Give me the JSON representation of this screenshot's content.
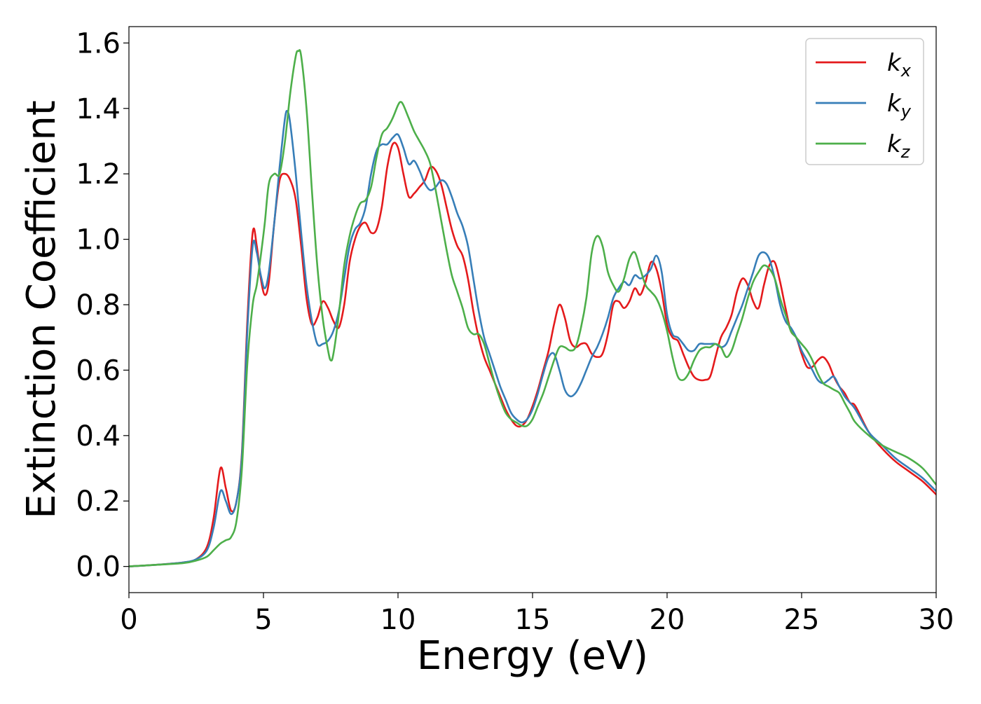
{
  "chart_data": {
    "type": "line",
    "title": "",
    "xlabel": "Energy (eV)",
    "ylabel": "Extinction Coefficient",
    "xlim": [
      0,
      30
    ],
    "ylim": [
      -0.08,
      1.65
    ],
    "xticks": [
      0,
      5,
      10,
      15,
      20,
      25,
      30
    ],
    "xtick_labels": [
      "0",
      "5",
      "10",
      "15",
      "20",
      "25",
      "30"
    ],
    "yticks": [
      0.0,
      0.2,
      0.4,
      0.6,
      0.8,
      1.0,
      1.2,
      1.4,
      1.6
    ],
    "ytick_labels": [
      "0.0",
      "0.2",
      "0.4",
      "0.6",
      "0.8",
      "1.0",
      "1.2",
      "1.4",
      "1.6"
    ],
    "grid": false,
    "legend_position": "top-right",
    "series": [
      {
        "name": "k",
        "subscript": "x",
        "color": "#e41a1c",
        "x": [
          0,
          1,
          2,
          2.5,
          2.9,
          3.15,
          3.4,
          3.6,
          3.8,
          4.0,
          4.2,
          4.4,
          4.6,
          4.75,
          4.9,
          5.05,
          5.2,
          5.4,
          5.6,
          5.8,
          6.0,
          6.2,
          6.4,
          6.6,
          6.8,
          7.0,
          7.2,
          7.4,
          7.6,
          7.8,
          8.0,
          8.2,
          8.4,
          8.6,
          8.8,
          9.0,
          9.2,
          9.4,
          9.6,
          9.8,
          10.0,
          10.2,
          10.4,
          10.6,
          10.8,
          11.0,
          11.2,
          11.4,
          11.6,
          11.8,
          12.0,
          12.2,
          12.4,
          12.6,
          12.8,
          13.0,
          13.2,
          13.4,
          13.6,
          13.8,
          14.0,
          14.2,
          14.4,
          14.6,
          14.8,
          15.0,
          15.2,
          15.4,
          15.6,
          15.8,
          16.0,
          16.2,
          16.4,
          16.6,
          16.8,
          17.0,
          17.2,
          17.4,
          17.6,
          17.8,
          18.0,
          18.2,
          18.4,
          18.6,
          18.8,
          19.0,
          19.2,
          19.4,
          19.6,
          19.8,
          20.0,
          20.2,
          20.4,
          20.6,
          20.8,
          21.0,
          21.2,
          21.4,
          21.6,
          21.8,
          22.0,
          22.2,
          22.4,
          22.6,
          22.8,
          23.0,
          23.2,
          23.4,
          23.6,
          23.8,
          24.0,
          24.2,
          24.4,
          24.6,
          24.8,
          25.0,
          25.2,
          25.4,
          25.6,
          25.8,
          26.0,
          26.2,
          26.4,
          26.6,
          26.8,
          27.0,
          27.5,
          28.0,
          28.5,
          29.0,
          29.5,
          30.0
        ],
        "y": [
          0.0,
          0.005,
          0.012,
          0.022,
          0.06,
          0.15,
          0.3,
          0.24,
          0.17,
          0.2,
          0.35,
          0.75,
          1.02,
          0.98,
          0.88,
          0.83,
          0.87,
          1.05,
          1.18,
          1.2,
          1.18,
          1.12,
          0.98,
          0.82,
          0.74,
          0.76,
          0.81,
          0.79,
          0.75,
          0.73,
          0.8,
          0.93,
          1.0,
          1.04,
          1.05,
          1.02,
          1.03,
          1.1,
          1.22,
          1.29,
          1.28,
          1.2,
          1.13,
          1.14,
          1.16,
          1.18,
          1.22,
          1.21,
          1.17,
          1.1,
          1.03,
          0.98,
          0.95,
          0.88,
          0.78,
          0.7,
          0.64,
          0.6,
          0.56,
          0.52,
          0.48,
          0.45,
          0.43,
          0.43,
          0.45,
          0.49,
          0.54,
          0.6,
          0.66,
          0.74,
          0.8,
          0.76,
          0.69,
          0.67,
          0.68,
          0.68,
          0.65,
          0.64,
          0.65,
          0.71,
          0.8,
          0.81,
          0.79,
          0.81,
          0.85,
          0.83,
          0.87,
          0.93,
          0.91,
          0.84,
          0.74,
          0.7,
          0.69,
          0.65,
          0.61,
          0.58,
          0.57,
          0.57,
          0.58,
          0.64,
          0.7,
          0.73,
          0.77,
          0.84,
          0.88,
          0.86,
          0.81,
          0.79,
          0.86,
          0.92,
          0.93,
          0.87,
          0.79,
          0.72,
          0.7,
          0.65,
          0.61,
          0.61,
          0.63,
          0.64,
          0.62,
          0.58,
          0.55,
          0.53,
          0.5,
          0.49,
          0.41,
          0.36,
          0.32,
          0.29,
          0.26,
          0.22
        ]
      },
      {
        "name": "k",
        "subscript": "y",
        "color": "#377eb8",
        "x": [
          0,
          1,
          2,
          2.5,
          2.9,
          3.15,
          3.4,
          3.6,
          3.8,
          4.0,
          4.2,
          4.4,
          4.6,
          4.75,
          4.9,
          5.05,
          5.2,
          5.4,
          5.6,
          5.8,
          5.9,
          6.0,
          6.2,
          6.4,
          6.6,
          6.8,
          7.0,
          7.2,
          7.4,
          7.6,
          7.8,
          8.0,
          8.2,
          8.4,
          8.6,
          8.8,
          9.0,
          9.2,
          9.4,
          9.6,
          9.8,
          10.0,
          10.2,
          10.4,
          10.6,
          10.8,
          11.0,
          11.2,
          11.4,
          11.6,
          11.8,
          12.0,
          12.2,
          12.4,
          12.6,
          12.8,
          13.0,
          13.2,
          13.4,
          13.6,
          13.8,
          14.0,
          14.2,
          14.4,
          14.6,
          14.8,
          15.0,
          15.2,
          15.4,
          15.6,
          15.8,
          16.0,
          16.2,
          16.4,
          16.6,
          16.8,
          17.0,
          17.2,
          17.4,
          17.6,
          17.8,
          18.0,
          18.2,
          18.4,
          18.6,
          18.8,
          19.0,
          19.2,
          19.4,
          19.6,
          19.8,
          20.0,
          20.2,
          20.4,
          20.6,
          20.8,
          21.0,
          21.2,
          21.4,
          21.6,
          21.8,
          22.0,
          22.2,
          22.4,
          22.6,
          22.8,
          23.0,
          23.2,
          23.4,
          23.6,
          23.8,
          24.0,
          24.2,
          24.4,
          24.6,
          24.8,
          25.0,
          25.2,
          25.4,
          25.6,
          25.8,
          26.0,
          26.2,
          26.4,
          26.6,
          26.8,
          27.0,
          27.5,
          28.0,
          28.5,
          29.0,
          29.5,
          30.0
        ],
        "y": [
          0.0,
          0.005,
          0.012,
          0.022,
          0.05,
          0.12,
          0.23,
          0.2,
          0.16,
          0.2,
          0.34,
          0.72,
          0.98,
          0.96,
          0.89,
          0.85,
          0.9,
          1.05,
          1.22,
          1.37,
          1.39,
          1.35,
          1.2,
          1.02,
          0.86,
          0.75,
          0.68,
          0.68,
          0.69,
          0.72,
          0.78,
          0.88,
          0.98,
          1.03,
          1.05,
          1.1,
          1.2,
          1.27,
          1.29,
          1.29,
          1.31,
          1.32,
          1.28,
          1.23,
          1.24,
          1.21,
          1.17,
          1.15,
          1.16,
          1.18,
          1.17,
          1.13,
          1.08,
          1.04,
          0.98,
          0.88,
          0.78,
          0.7,
          0.65,
          0.6,
          0.55,
          0.51,
          0.47,
          0.45,
          0.44,
          0.45,
          0.48,
          0.53,
          0.59,
          0.64,
          0.65,
          0.6,
          0.54,
          0.52,
          0.53,
          0.56,
          0.6,
          0.64,
          0.67,
          0.71,
          0.76,
          0.82,
          0.85,
          0.87,
          0.86,
          0.89,
          0.88,
          0.89,
          0.91,
          0.95,
          0.9,
          0.77,
          0.71,
          0.7,
          0.68,
          0.66,
          0.66,
          0.68,
          0.68,
          0.68,
          0.68,
          0.67,
          0.68,
          0.72,
          0.76,
          0.8,
          0.85,
          0.9,
          0.95,
          0.96,
          0.94,
          0.88,
          0.8,
          0.75,
          0.73,
          0.7,
          0.66,
          0.63,
          0.6,
          0.57,
          0.56,
          0.57,
          0.58,
          0.55,
          0.52,
          0.5,
          0.48,
          0.41,
          0.37,
          0.33,
          0.3,
          0.27,
          0.23
        ]
      },
      {
        "name": "k",
        "subscript": "z",
        "color": "#4daf4a",
        "x": [
          0,
          1,
          2,
          2.5,
          2.9,
          3.15,
          3.4,
          3.6,
          3.8,
          4.0,
          4.2,
          4.4,
          4.6,
          4.75,
          4.9,
          5.05,
          5.2,
          5.4,
          5.6,
          5.8,
          6.0,
          6.2,
          6.3,
          6.4,
          6.6,
          6.8,
          7.0,
          7.2,
          7.4,
          7.5,
          7.6,
          7.8,
          8.0,
          8.2,
          8.4,
          8.6,
          8.8,
          9.0,
          9.2,
          9.4,
          9.6,
          9.8,
          10.0,
          10.1,
          10.2,
          10.4,
          10.6,
          10.8,
          11.0,
          11.2,
          11.4,
          11.6,
          11.8,
          12.0,
          12.2,
          12.4,
          12.6,
          12.8,
          13.0,
          13.2,
          13.4,
          13.6,
          13.8,
          14.0,
          14.2,
          14.4,
          14.6,
          14.8,
          15.0,
          15.2,
          15.4,
          15.6,
          15.8,
          16.0,
          16.2,
          16.4,
          16.6,
          16.8,
          17.0,
          17.2,
          17.4,
          17.6,
          17.8,
          18.0,
          18.2,
          18.4,
          18.6,
          18.8,
          19.0,
          19.2,
          19.4,
          19.6,
          19.8,
          20.0,
          20.2,
          20.4,
          20.6,
          20.8,
          21.0,
          21.2,
          21.4,
          21.6,
          21.8,
          22.0,
          22.2,
          22.4,
          22.6,
          22.8,
          23.0,
          23.2,
          23.4,
          23.6,
          23.8,
          24.0,
          24.2,
          24.4,
          24.6,
          24.8,
          25.0,
          25.2,
          25.4,
          25.6,
          25.8,
          26.0,
          26.2,
          26.4,
          26.6,
          26.8,
          27.0,
          27.5,
          28.0,
          28.5,
          29.0,
          29.5,
          30.0
        ],
        "y": [
          0.0,
          0.005,
          0.01,
          0.018,
          0.03,
          0.05,
          0.07,
          0.08,
          0.09,
          0.14,
          0.3,
          0.62,
          0.8,
          0.86,
          0.95,
          1.05,
          1.17,
          1.2,
          1.2,
          1.3,
          1.45,
          1.56,
          1.575,
          1.56,
          1.4,
          1.15,
          0.92,
          0.76,
          0.66,
          0.63,
          0.65,
          0.77,
          0.92,
          1.01,
          1.07,
          1.11,
          1.12,
          1.16,
          1.25,
          1.32,
          1.34,
          1.37,
          1.41,
          1.42,
          1.41,
          1.37,
          1.33,
          1.3,
          1.27,
          1.23,
          1.15,
          1.06,
          0.97,
          0.89,
          0.84,
          0.79,
          0.73,
          0.71,
          0.71,
          0.68,
          0.62,
          0.56,
          0.51,
          0.47,
          0.45,
          0.44,
          0.43,
          0.43,
          0.45,
          0.49,
          0.53,
          0.58,
          0.63,
          0.67,
          0.67,
          0.66,
          0.67,
          0.73,
          0.82,
          0.96,
          1.01,
          0.98,
          0.9,
          0.86,
          0.84,
          0.88,
          0.94,
          0.96,
          0.91,
          0.86,
          0.84,
          0.82,
          0.78,
          0.72,
          0.64,
          0.58,
          0.57,
          0.59,
          0.63,
          0.66,
          0.67,
          0.67,
          0.68,
          0.67,
          0.64,
          0.66,
          0.71,
          0.76,
          0.82,
          0.87,
          0.9,
          0.92,
          0.91,
          0.88,
          0.82,
          0.77,
          0.72,
          0.7,
          0.68,
          0.66,
          0.63,
          0.59,
          0.56,
          0.55,
          0.54,
          0.53,
          0.5,
          0.47,
          0.44,
          0.4,
          0.37,
          0.35,
          0.33,
          0.3,
          0.25
        ]
      }
    ]
  },
  "colors": {
    "axis": "#000000",
    "background": "#ffffff",
    "legend_border": "#cccccc"
  }
}
